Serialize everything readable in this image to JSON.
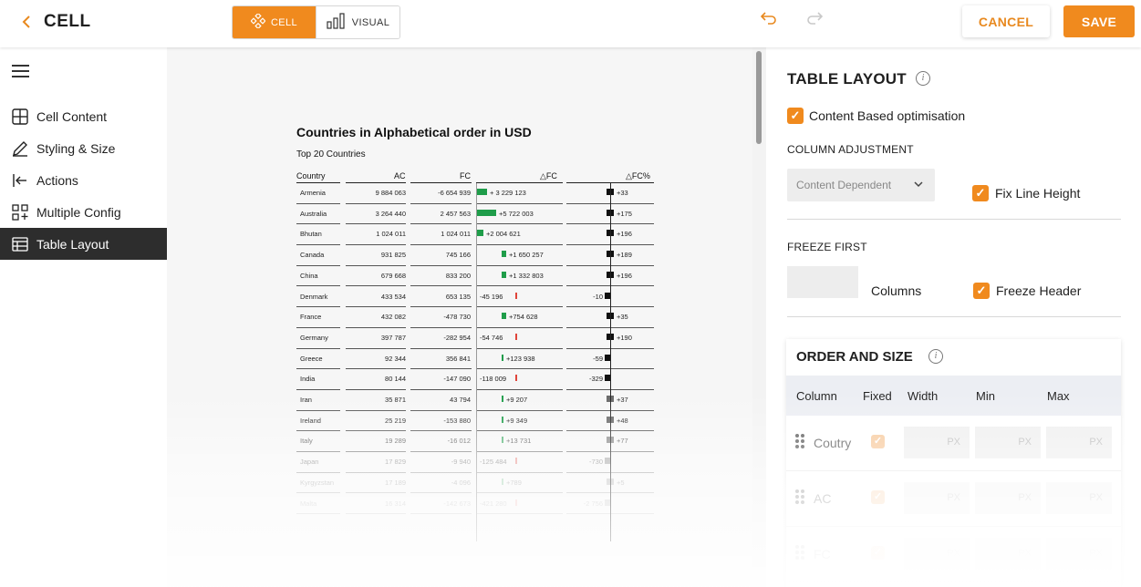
{
  "header": {
    "back_icon": "chevron-left-icon",
    "title": "CELL",
    "modes": [
      {
        "label": "CELL",
        "icon": "cell-diamond-icon",
        "active": true
      },
      {
        "label": "VISUAL",
        "icon": "bar-chart-icon",
        "active": false
      }
    ],
    "cancel_label": "CANCEL",
    "save_label": "SAVE",
    "accent_color": "#f08a1e"
  },
  "sidebar": {
    "items": [
      {
        "label": "Cell Content",
        "icon": "grid-icon"
      },
      {
        "label": "Styling & Size",
        "icon": "pencil-icon"
      },
      {
        "label": "Actions",
        "icon": "arrow-in-icon"
      },
      {
        "label": "Multiple Config",
        "icon": "multi-grid-icon"
      },
      {
        "label": "Table Layout",
        "icon": "table-icon",
        "active": true
      }
    ]
  },
  "report": {
    "title": "Countries in Alphabetical order in USD",
    "subtitle": "Top 20 Countries",
    "columns": [
      "Country",
      "AC",
      "FC",
      "△FC",
      "△FC%"
    ],
    "rows": [
      {
        "country": "Armenia",
        "ac": "9 884 063",
        "fc": "-6 654 939",
        "dfc": "+ 3 229 123",
        "dfc_val": 3229123,
        "pct": "+33",
        "pct_val": 33
      },
      {
        "country": "Australia",
        "ac": "3 264 440",
        "fc": "2 457 563",
        "dfc": "+5 722 003",
        "dfc_val": 5722003,
        "pct": "+175",
        "pct_val": 175
      },
      {
        "country": "Bhutan",
        "ac": "1 024 011",
        "fc": "1 024 011",
        "dfc": "+2 004 621",
        "dfc_val": 2004621,
        "pct": "+196",
        "pct_val": 196
      },
      {
        "country": "Canada",
        "ac": "931 825",
        "fc": "745 166",
        "dfc": "+1 650 257",
        "dfc_val": 1650257,
        "pct": "+189",
        "pct_val": 189
      },
      {
        "country": "China",
        "ac": "679 668",
        "fc": "833 200",
        "dfc": "+1 332 803",
        "dfc_val": 1332803,
        "pct": "+196",
        "pct_val": 196
      },
      {
        "country": "Denmark",
        "ac": "433 534",
        "fc": "653 135",
        "dfc": "-45 196",
        "dfc_val": -45196,
        "pct": "-10",
        "pct_val": -10
      },
      {
        "country": "France",
        "ac": "432 082",
        "fc": "-478 730",
        "dfc": "+754 628",
        "dfc_val": 754628,
        "pct": "+35",
        "pct_val": 35
      },
      {
        "country": "Germany",
        "ac": "397 787",
        "fc": "-282 954",
        "dfc": "-54 746",
        "dfc_val": -54746,
        "pct": "+190",
        "pct_val": 190
      },
      {
        "country": "Greece",
        "ac": "92 344",
        "fc": "356 841",
        "dfc": "+123 938",
        "dfc_val": 123938,
        "pct": "-59",
        "pct_val": -59
      },
      {
        "country": "India",
        "ac": "80 144",
        "fc": "-147 090",
        "dfc": "-118 009",
        "dfc_val": -118009,
        "pct": "-329",
        "pct_val": -329
      },
      {
        "country": "Iran",
        "ac": "35 871",
        "fc": "43 794",
        "dfc": "+9 207",
        "dfc_val": 9207,
        "pct": "+37",
        "pct_val": 37
      },
      {
        "country": "Ireland",
        "ac": "25 219",
        "fc": "-153 880",
        "dfc": "+9 349",
        "dfc_val": 9349,
        "pct": "+48",
        "pct_val": 48
      },
      {
        "country": "Italy",
        "ac": "19 289",
        "fc": "-16 012",
        "dfc": "+13 731",
        "dfc_val": 13731,
        "pct": "+77",
        "pct_val": 77
      },
      {
        "country": "Japan",
        "ac": "17 829",
        "fc": "-9 940",
        "dfc": "-125 484",
        "dfc_val": -125484,
        "pct": "-730",
        "pct_val": -730
      },
      {
        "country": "Kyrgyzstan",
        "ac": "17 189",
        "fc": "-4 096",
        "dfc": "+789",
        "dfc_val": 789,
        "pct": "+5",
        "pct_val": 5
      },
      {
        "country": "Malta",
        "ac": "16 314",
        "fc": "-142 673",
        "dfc": "-421 280",
        "dfc_val": -421280,
        "pct": "-2 756",
        "pct_val": -2756
      }
    ]
  },
  "panel": {
    "title": "TABLE LAYOUT",
    "content_based": {
      "label": "Content Based optimisation",
      "checked": true
    },
    "column_adjustment": {
      "heading": "COLUMN ADJUSTMENT",
      "select_value": "Content Dependent",
      "fix_line_height": {
        "label": "Fix Line Height",
        "checked": true
      }
    },
    "freeze": {
      "heading": "FREEZE FIRST",
      "columns_label": "Columns",
      "freeze_header": {
        "label": "Freeze Header",
        "checked": true
      }
    },
    "order_and_size": {
      "heading": "ORDER AND SIZE",
      "headers": [
        "Column",
        "Fixed",
        "Width",
        "Min",
        "Max"
      ],
      "unit": "PX",
      "rows": [
        {
          "name": "Coutry",
          "fixed": true
        },
        {
          "name": "AC",
          "fixed": true
        },
        {
          "name": "FC",
          "fixed": true
        }
      ]
    }
  }
}
